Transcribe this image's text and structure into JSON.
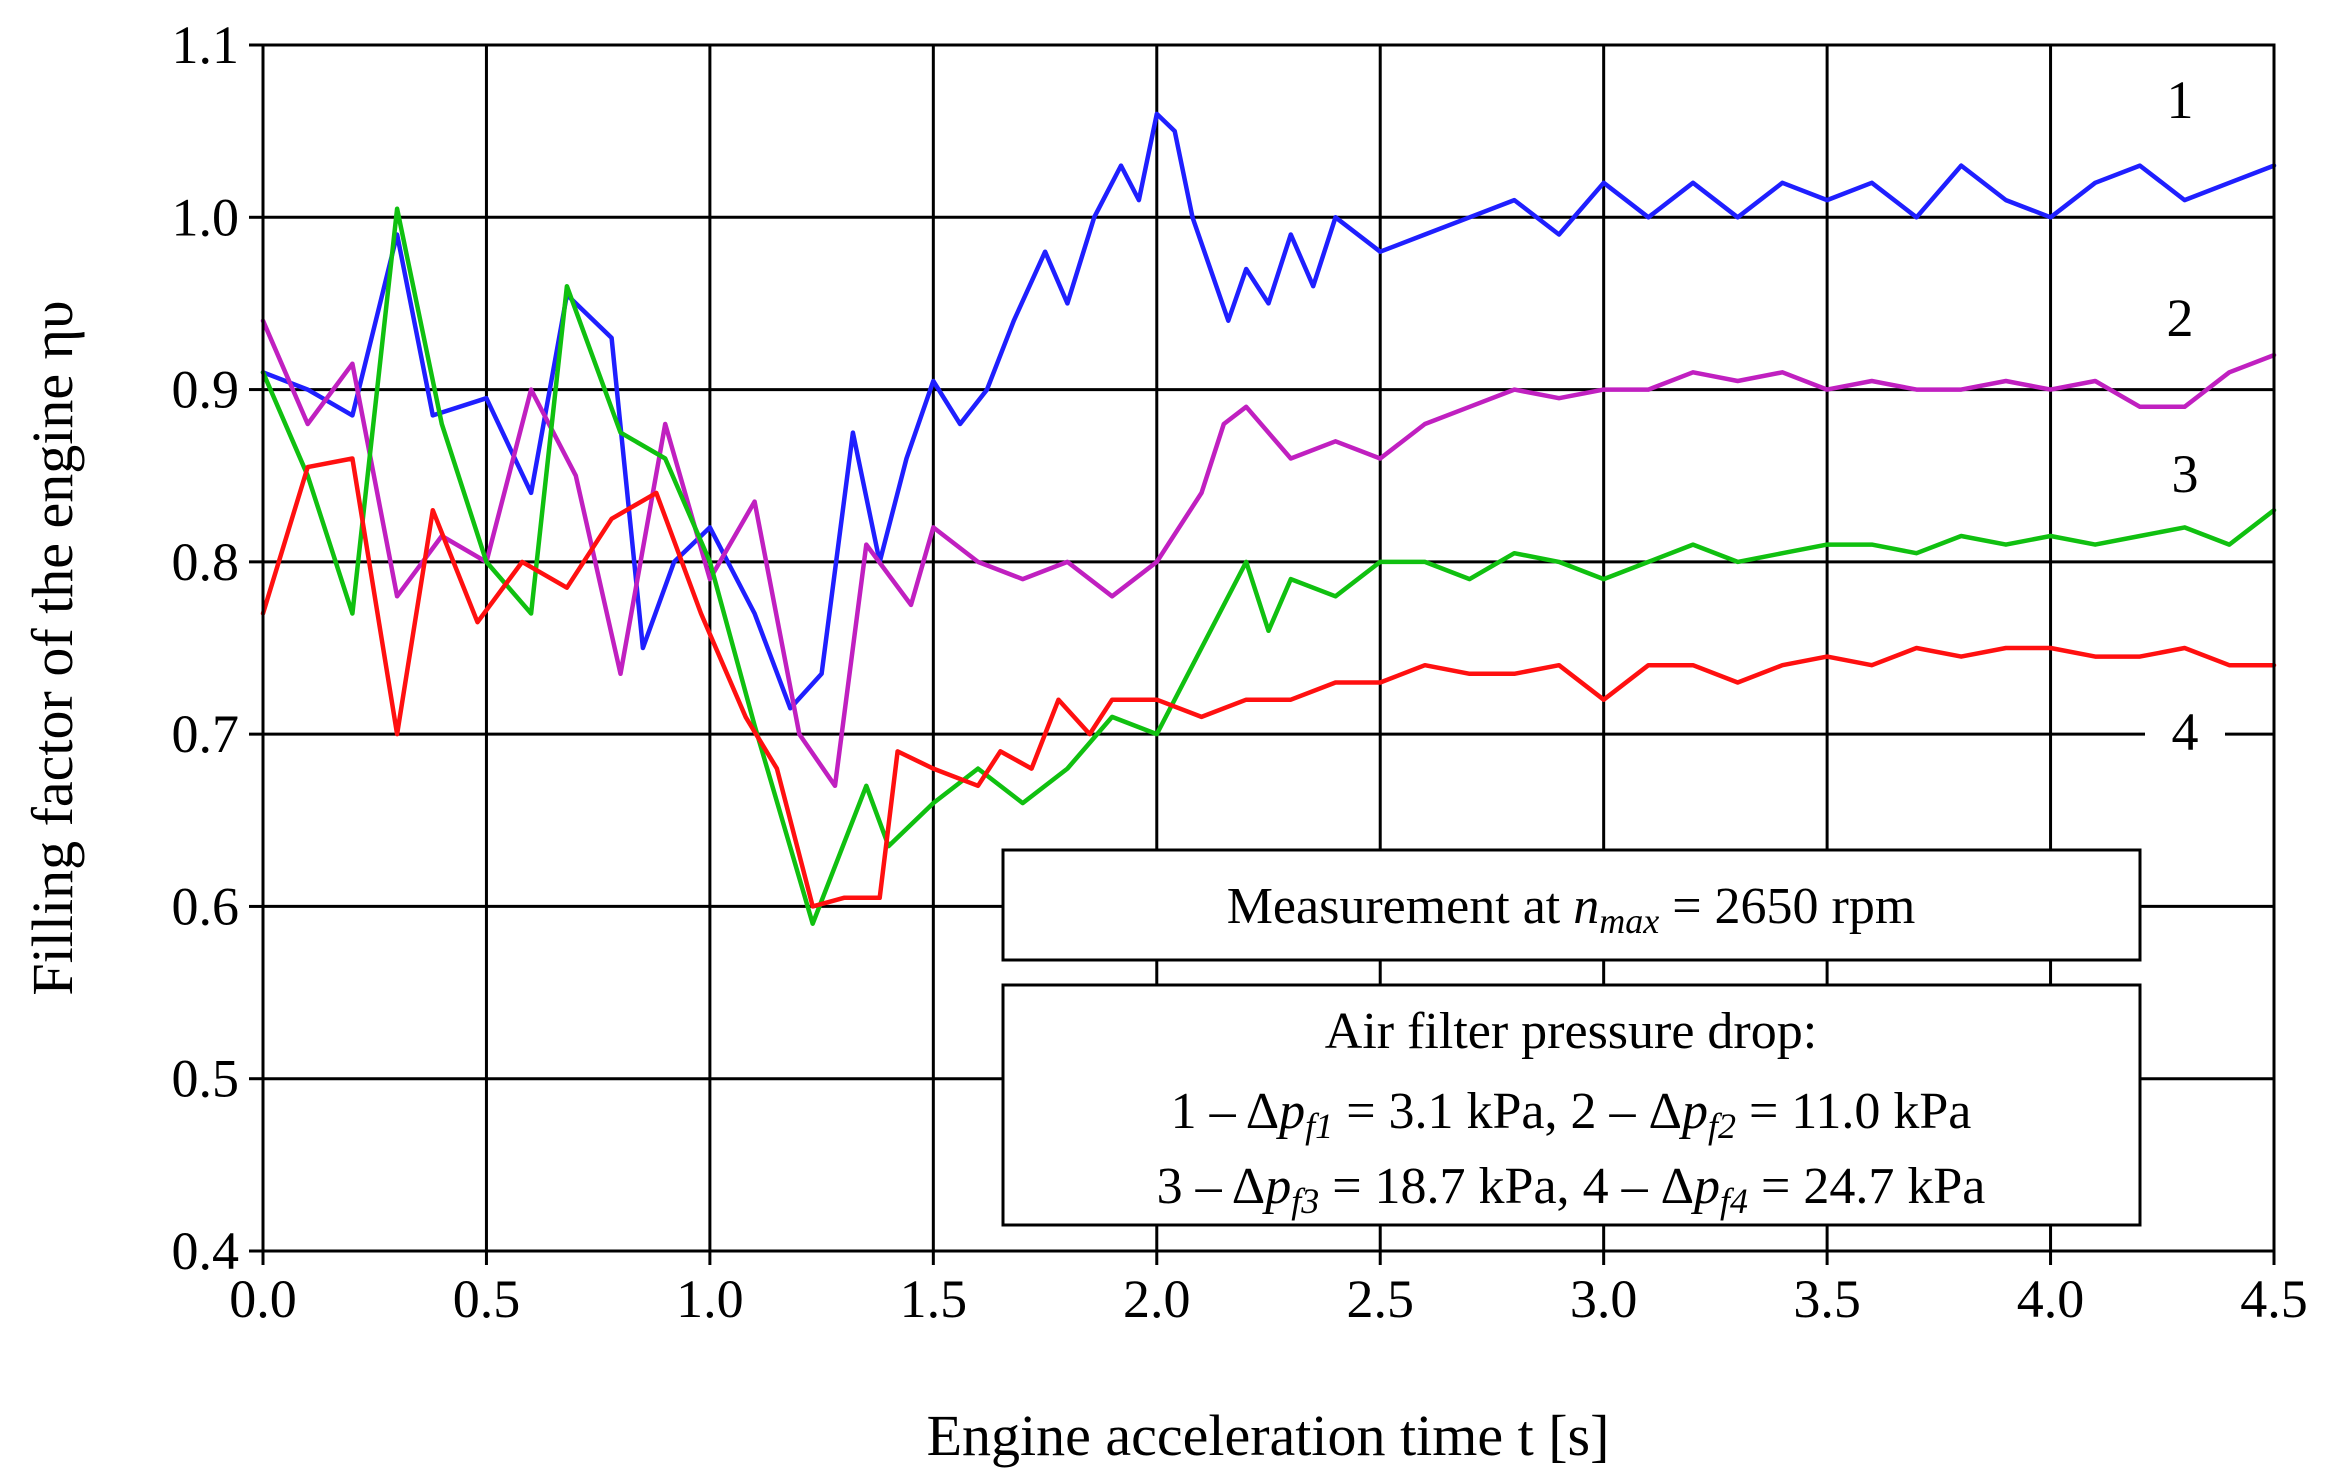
{
  "chart_data": {
    "type": "line",
    "title": "",
    "xlabel": "Engine acceleration time t [s]",
    "ylabel": "Filling factor of the engine ηυ",
    "xlim": [
      0.0,
      4.5
    ],
    "ylim": [
      0.4,
      1.1
    ],
    "xticks": [
      "0.0",
      "0.5",
      "1.0",
      "1.5",
      "2.0",
      "2.5",
      "3.0",
      "3.5",
      "4.0",
      "4.5"
    ],
    "yticks": [
      "0.4",
      "0.5",
      "0.6",
      "0.7",
      "0.8",
      "0.9",
      "1.0",
      "1.1"
    ],
    "grid": true,
    "series": [
      {
        "name": "1",
        "color": "#1f1fff",
        "points": [
          [
            0.0,
            0.91
          ],
          [
            0.1,
            0.9
          ],
          [
            0.2,
            0.885
          ],
          [
            0.3,
            0.99
          ],
          [
            0.38,
            0.885
          ],
          [
            0.5,
            0.895
          ],
          [
            0.6,
            0.84
          ],
          [
            0.68,
            0.955
          ],
          [
            0.78,
            0.93
          ],
          [
            0.85,
            0.75
          ],
          [
            0.92,
            0.8
          ],
          [
            1.0,
            0.82
          ],
          [
            1.1,
            0.77
          ],
          [
            1.18,
            0.715
          ],
          [
            1.25,
            0.735
          ],
          [
            1.32,
            0.875
          ],
          [
            1.38,
            0.8
          ],
          [
            1.44,
            0.86
          ],
          [
            1.5,
            0.905
          ],
          [
            1.56,
            0.88
          ],
          [
            1.62,
            0.9
          ],
          [
            1.68,
            0.94
          ],
          [
            1.75,
            0.98
          ],
          [
            1.8,
            0.95
          ],
          [
            1.86,
            1.0
          ],
          [
            1.92,
            1.03
          ],
          [
            1.96,
            1.01
          ],
          [
            2.0,
            1.06
          ],
          [
            2.04,
            1.05
          ],
          [
            2.08,
            1.0
          ],
          [
            2.12,
            0.97
          ],
          [
            2.16,
            0.94
          ],
          [
            2.2,
            0.97
          ],
          [
            2.25,
            0.95
          ],
          [
            2.3,
            0.99
          ],
          [
            2.35,
            0.96
          ],
          [
            2.4,
            1.0
          ],
          [
            2.5,
            0.98
          ],
          [
            2.6,
            0.99
          ],
          [
            2.7,
            1.0
          ],
          [
            2.8,
            1.01
          ],
          [
            2.9,
            0.99
          ],
          [
            3.0,
            1.02
          ],
          [
            3.1,
            1.0
          ],
          [
            3.2,
            1.02
          ],
          [
            3.3,
            1.0
          ],
          [
            3.4,
            1.02
          ],
          [
            3.5,
            1.01
          ],
          [
            3.6,
            1.02
          ],
          [
            3.7,
            1.0
          ],
          [
            3.8,
            1.03
          ],
          [
            3.9,
            1.01
          ],
          [
            4.0,
            1.0
          ],
          [
            4.1,
            1.02
          ],
          [
            4.2,
            1.03
          ],
          [
            4.3,
            1.01
          ],
          [
            4.4,
            1.02
          ],
          [
            4.5,
            1.03
          ]
        ]
      },
      {
        "name": "2",
        "color": "#c020c0",
        "points": [
          [
            0.0,
            0.94
          ],
          [
            0.1,
            0.88
          ],
          [
            0.2,
            0.915
          ],
          [
            0.3,
            0.78
          ],
          [
            0.4,
            0.815
          ],
          [
            0.5,
            0.8
          ],
          [
            0.6,
            0.9
          ],
          [
            0.7,
            0.85
          ],
          [
            0.8,
            0.735
          ],
          [
            0.9,
            0.88
          ],
          [
            1.0,
            0.79
          ],
          [
            1.1,
            0.835
          ],
          [
            1.2,
            0.7
          ],
          [
            1.28,
            0.67
          ],
          [
            1.35,
            0.81
          ],
          [
            1.45,
            0.775
          ],
          [
            1.5,
            0.82
          ],
          [
            1.6,
            0.8
          ],
          [
            1.7,
            0.79
          ],
          [
            1.8,
            0.8
          ],
          [
            1.9,
            0.78
          ],
          [
            2.0,
            0.8
          ],
          [
            2.1,
            0.84
          ],
          [
            2.15,
            0.88
          ],
          [
            2.2,
            0.89
          ],
          [
            2.3,
            0.86
          ],
          [
            2.4,
            0.87
          ],
          [
            2.5,
            0.86
          ],
          [
            2.6,
            0.88
          ],
          [
            2.7,
            0.89
          ],
          [
            2.8,
            0.9
          ],
          [
            2.9,
            0.895
          ],
          [
            3.0,
            0.9
          ],
          [
            3.1,
            0.9
          ],
          [
            3.2,
            0.91
          ],
          [
            3.3,
            0.905
          ],
          [
            3.4,
            0.91
          ],
          [
            3.5,
            0.9
          ],
          [
            3.6,
            0.905
          ],
          [
            3.7,
            0.9
          ],
          [
            3.8,
            0.9
          ],
          [
            3.9,
            0.905
          ],
          [
            4.0,
            0.9
          ],
          [
            4.1,
            0.905
          ],
          [
            4.2,
            0.89
          ],
          [
            4.3,
            0.89
          ],
          [
            4.4,
            0.91
          ],
          [
            4.5,
            0.92
          ]
        ]
      },
      {
        "name": "3",
        "color": "#10c010",
        "points": [
          [
            0.0,
            0.91
          ],
          [
            0.1,
            0.85
          ],
          [
            0.2,
            0.77
          ],
          [
            0.3,
            1.005
          ],
          [
            0.4,
            0.88
          ],
          [
            0.5,
            0.8
          ],
          [
            0.6,
            0.77
          ],
          [
            0.68,
            0.96
          ],
          [
            0.8,
            0.875
          ],
          [
            0.9,
            0.86
          ],
          [
            1.0,
            0.8
          ],
          [
            1.1,
            0.705
          ],
          [
            1.23,
            0.59
          ],
          [
            1.35,
            0.67
          ],
          [
            1.4,
            0.635
          ],
          [
            1.5,
            0.66
          ],
          [
            1.6,
            0.68
          ],
          [
            1.7,
            0.66
          ],
          [
            1.8,
            0.68
          ],
          [
            1.9,
            0.71
          ],
          [
            2.0,
            0.7
          ],
          [
            2.1,
            0.75
          ],
          [
            2.2,
            0.8
          ],
          [
            2.25,
            0.76
          ],
          [
            2.3,
            0.79
          ],
          [
            2.4,
            0.78
          ],
          [
            2.5,
            0.8
          ],
          [
            2.6,
            0.8
          ],
          [
            2.7,
            0.79
          ],
          [
            2.8,
            0.805
          ],
          [
            2.9,
            0.8
          ],
          [
            3.0,
            0.79
          ],
          [
            3.1,
            0.8
          ],
          [
            3.2,
            0.81
          ],
          [
            3.3,
            0.8
          ],
          [
            3.4,
            0.805
          ],
          [
            3.5,
            0.81
          ],
          [
            3.6,
            0.81
          ],
          [
            3.7,
            0.805
          ],
          [
            3.8,
            0.815
          ],
          [
            3.9,
            0.81
          ],
          [
            4.0,
            0.815
          ],
          [
            4.1,
            0.81
          ],
          [
            4.2,
            0.815
          ],
          [
            4.3,
            0.82
          ],
          [
            4.4,
            0.81
          ],
          [
            4.5,
            0.83
          ]
        ]
      },
      {
        "name": "4",
        "color": "#ff1010",
        "points": [
          [
            0.0,
            0.77
          ],
          [
            0.1,
            0.855
          ],
          [
            0.2,
            0.86
          ],
          [
            0.3,
            0.7
          ],
          [
            0.38,
            0.83
          ],
          [
            0.48,
            0.765
          ],
          [
            0.58,
            0.8
          ],
          [
            0.68,
            0.785
          ],
          [
            0.78,
            0.825
          ],
          [
            0.88,
            0.84
          ],
          [
            0.98,
            0.77
          ],
          [
            1.08,
            0.71
          ],
          [
            1.15,
            0.68
          ],
          [
            1.23,
            0.6
          ],
          [
            1.3,
            0.605
          ],
          [
            1.38,
            0.605
          ],
          [
            1.42,
            0.69
          ],
          [
            1.5,
            0.68
          ],
          [
            1.6,
            0.67
          ],
          [
            1.65,
            0.69
          ],
          [
            1.72,
            0.68
          ],
          [
            1.78,
            0.72
          ],
          [
            1.85,
            0.7
          ],
          [
            1.9,
            0.72
          ],
          [
            2.0,
            0.72
          ],
          [
            2.1,
            0.71
          ],
          [
            2.2,
            0.72
          ],
          [
            2.3,
            0.72
          ],
          [
            2.4,
            0.73
          ],
          [
            2.5,
            0.73
          ],
          [
            2.6,
            0.74
          ],
          [
            2.7,
            0.735
          ],
          [
            2.8,
            0.735
          ],
          [
            2.9,
            0.74
          ],
          [
            3.0,
            0.72
          ],
          [
            3.1,
            0.74
          ],
          [
            3.2,
            0.74
          ],
          [
            3.3,
            0.73
          ],
          [
            3.4,
            0.74
          ],
          [
            3.5,
            0.745
          ],
          [
            3.6,
            0.74
          ],
          [
            3.7,
            0.75
          ],
          [
            3.8,
            0.745
          ],
          [
            3.9,
            0.75
          ],
          [
            4.0,
            0.75
          ],
          [
            4.1,
            0.745
          ],
          [
            4.2,
            0.745
          ],
          [
            4.3,
            0.75
          ],
          [
            4.4,
            0.74
          ],
          [
            4.5,
            0.74
          ]
        ]
      }
    ],
    "curve_labels": [
      "1",
      "2",
      "3",
      "4"
    ],
    "annotation_box": {
      "measurement_prefix": "Measurement at ",
      "measurement_var": "n",
      "measurement_sub": "max",
      "measurement_suffix": " = 2650 rpm"
    },
    "legend_box": {
      "title": "Air filter pressure drop:",
      "lines": [
        {
          "a_num": "1 – Δ",
          "a_var": "p",
          "a_sub": "f1",
          "a_val": " = 3.1 kPa, ",
          "b_num": "2 – Δ",
          "b_var": "p",
          "b_sub": "f2",
          "b_val": " = 11.0 kPa"
        },
        {
          "a_num": "3 – Δ",
          "a_var": "p",
          "a_sub": "f3",
          "a_val": " = 18.7 kPa,  ",
          "b_num": "4 – Δ",
          "b_var": "p",
          "b_sub": "f4",
          "b_val": " = 24.7 kPa"
        }
      ]
    }
  }
}
